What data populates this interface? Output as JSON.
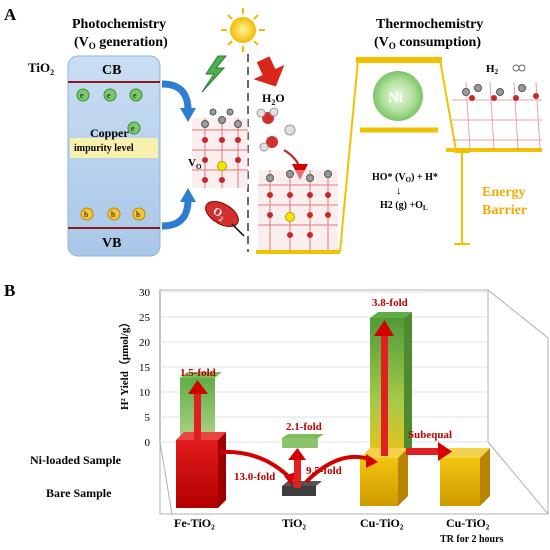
{
  "panel_a": {
    "label": "A",
    "photochemistry_title": "Photochemistry",
    "photochemistry_sub": "(V",
    "photochemistry_sub_o": "O",
    "photochemistry_sub_end": " generation)",
    "thermochemistry_title": "Thermochemistry",
    "thermochemistry_sub": "(V",
    "thermochemistry_sub_o": "O",
    "thermochemistry_sub_end": " consumption)",
    "tio2": "TiO",
    "tio2_sub": "2",
    "cb": "CB",
    "vb": "VB",
    "electron": "e",
    "hole": "h",
    "copper": "Copper",
    "impurity": "impurity level",
    "vo": "V",
    "vo_sub": "O",
    "o2": "O",
    "o2_sub": "2",
    "h2o": "H",
    "h2o_sub": "2",
    "h2o_end": "O",
    "ni": "Ni",
    "h2": "H",
    "h2_sub": "2",
    "reaction_line1": "HO* (V",
    "reaction_line1_sub": "O",
    "reaction_line1_end": ") + H*",
    "reaction_arrow": "↓",
    "reaction_line2": "H2 (g) +O",
    "reaction_line2_sub": "L",
    "energy": "Energy",
    "barrier": "Barrier"
  },
  "panel_b": {
    "label": "B"
  },
  "chart_data": {
    "type": "bar",
    "ylabel": "H² Yield（μmol/g）",
    "ylim": [
      0,
      30
    ],
    "yticks": [
      0,
      5,
      10,
      15,
      20,
      25,
      30
    ],
    "categories": [
      "Fe-TiO₂",
      "TiO₂",
      "Cu-TiO₂",
      "Cu-TiO₂"
    ],
    "category_sub": [
      "",
      "",
      "",
      "TR for 2 hours"
    ],
    "series": [
      {
        "name": "Ni-loaded Sample",
        "values": [
          14.5,
          1.9,
          24.8,
          null
        ],
        "color": "#6aa84f"
      },
      {
        "name": "Bare Sample",
        "values": [
          10.0,
          0.8,
          6.6,
          6.4
        ],
        "color": "#cc0000"
      }
    ],
    "row_labels": [
      "Ni-loaded Sample",
      "Bare Sample"
    ],
    "annotations": [
      "1.5-fold",
      "2.1-fold",
      "3.8-fold",
      "13.0-fold",
      "9.5-fold",
      "Subequal"
    ]
  }
}
